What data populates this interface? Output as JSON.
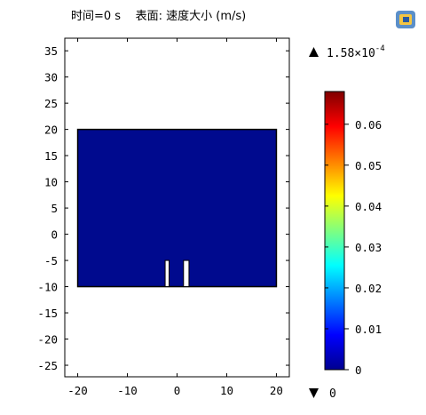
{
  "chart_data": {
    "type": "heatmap",
    "title": "时间=0 s    表面: 速度大小 (m/s)",
    "xlabel": "",
    "ylabel": "",
    "xlim": [
      -22.6,
      22.6
    ],
    "ylim": [
      -27.2,
      37.4
    ],
    "x_ticks": [
      -20,
      -10,
      0,
      10,
      20
    ],
    "y_ticks": [
      35,
      30,
      25,
      20,
      15,
      10,
      5,
      0,
      -5,
      -10,
      -15,
      -20,
      -25
    ],
    "domain": {
      "x": [
        -20,
        20
      ],
      "y": [
        -10,
        20
      ]
    },
    "obstacles": [
      {
        "x": [
          -2.4,
          -1.6
        ],
        "y": [
          -10,
          -5
        ]
      },
      {
        "x": [
          1.3,
          2.4
        ],
        "y": [
          -10,
          -5
        ]
      }
    ],
    "colorbar": {
      "range": [
        0,
        0.068
      ],
      "ticks": [
        0.06,
        0.05,
        0.04,
        0.03,
        0.02,
        0.01,
        0
      ],
      "max_label": "1.58×10",
      "max_label_exp": "-4",
      "min_label": "0"
    },
    "fill_color": "#000a8e"
  }
}
